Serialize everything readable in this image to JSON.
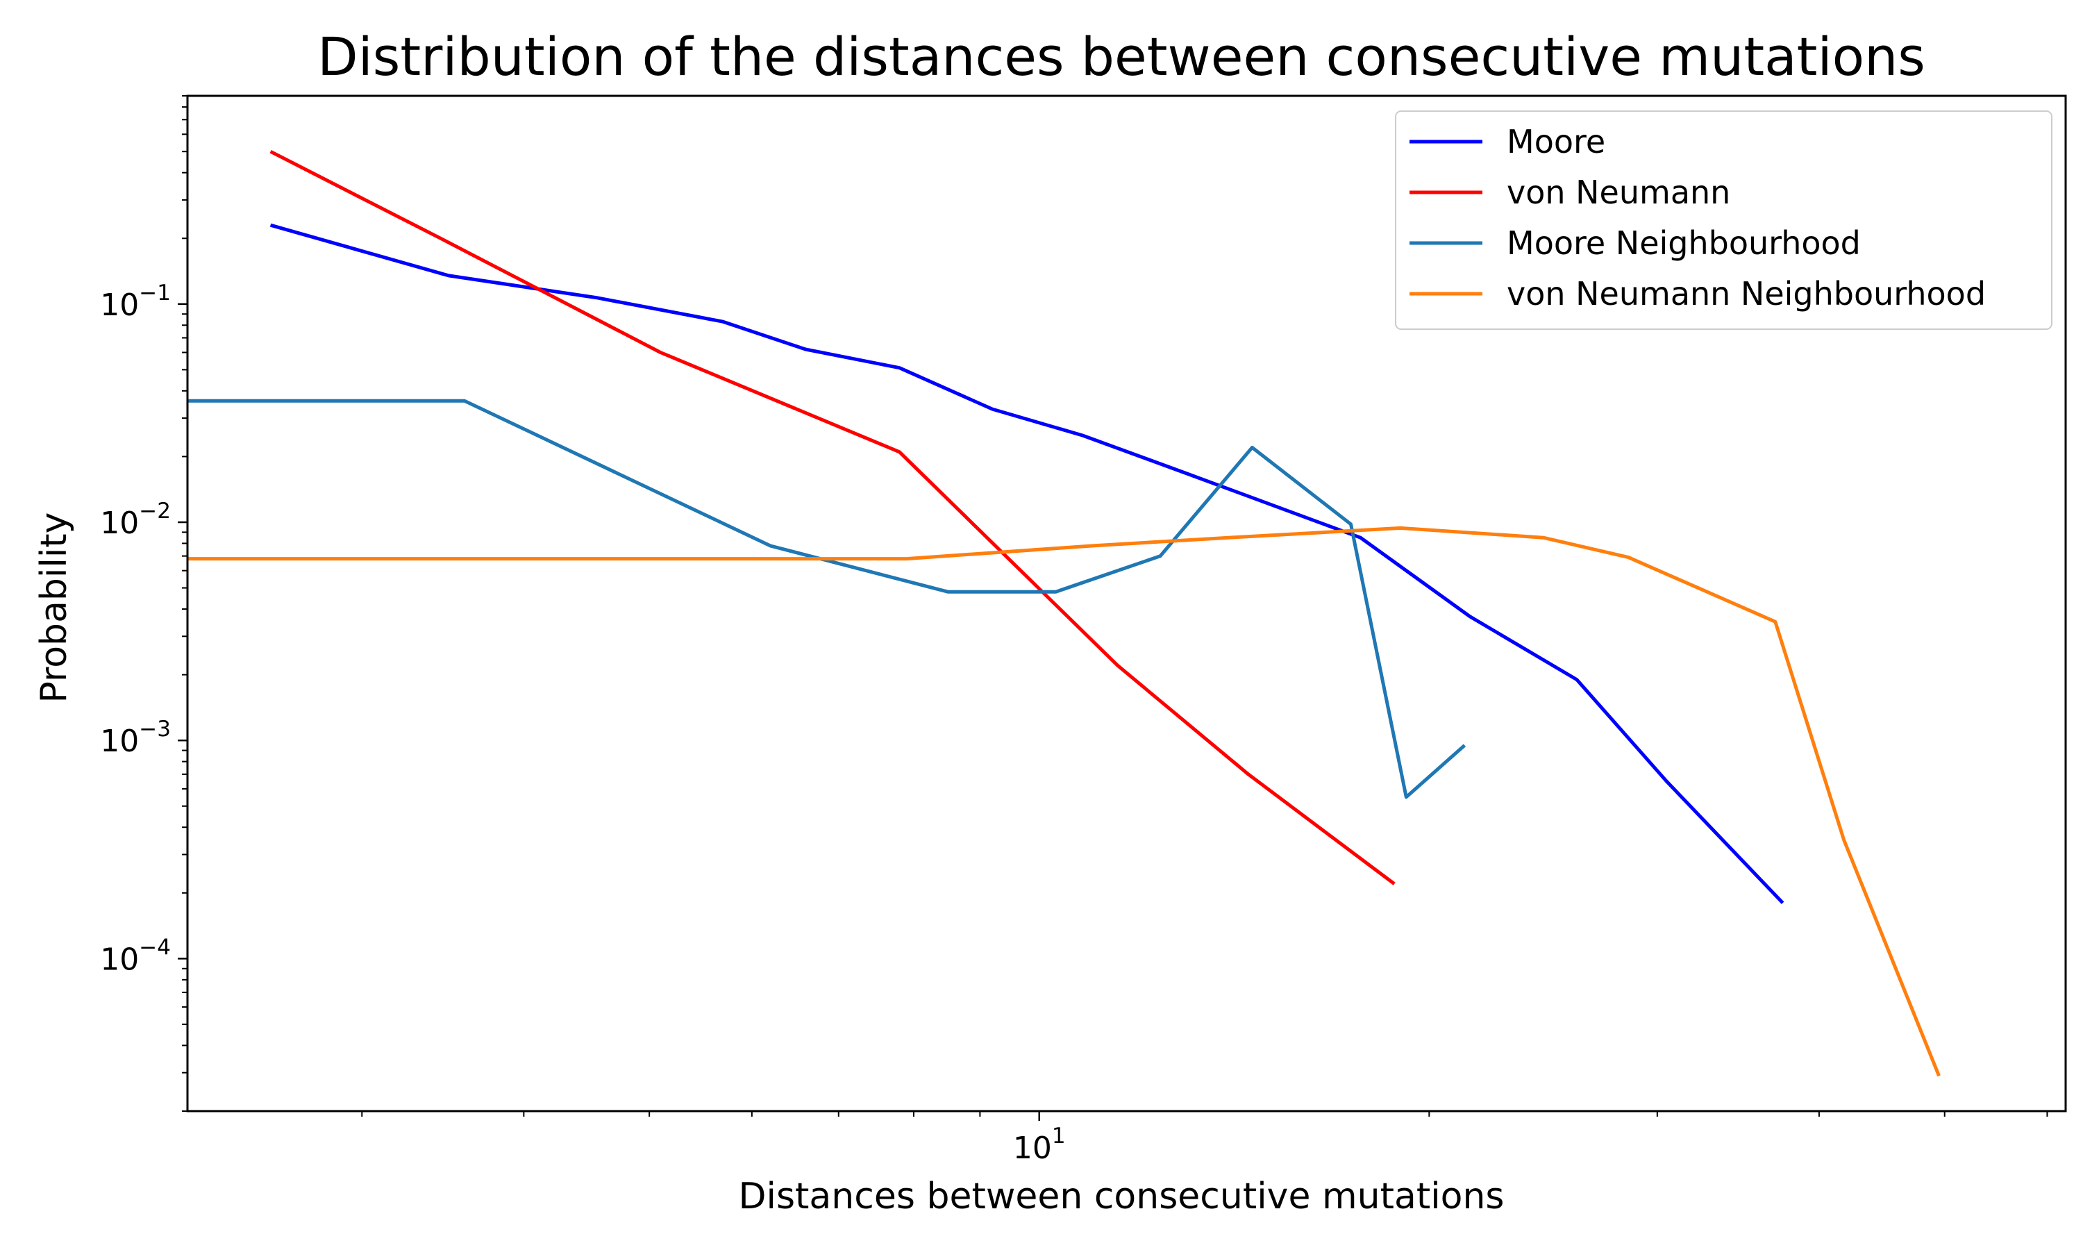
{
  "chart_data": {
    "type": "line",
    "title": "Distribution of the distances between consecutive mutations",
    "xlabel": "Distances between consecutive mutations",
    "ylabel": "Probability",
    "xscale": "log",
    "yscale": "log",
    "xlim": [
      2.2,
      62
    ],
    "ylim": [
      2e-05,
      0.9
    ],
    "x_ticks": [
      {
        "value": 10,
        "base": "10",
        "exp": "1"
      }
    ],
    "y_ticks": [
      {
        "value": 0.1,
        "base": "10",
        "exp": "−1"
      },
      {
        "value": 0.01,
        "base": "10",
        "exp": "−2"
      },
      {
        "value": 0.001,
        "base": "10",
        "exp": "−3"
      },
      {
        "value": 0.0001,
        "base": "10",
        "exp": "−4"
      }
    ],
    "legend_position": "top-right",
    "grid": false,
    "series": [
      {
        "name": "Moore",
        "color": "#0000ff",
        "points": [
          [
            2.55,
            0.23
          ],
          [
            3.5,
            0.135
          ],
          [
            4.55,
            0.107
          ],
          [
            5.7,
            0.083
          ],
          [
            6.6,
            0.062
          ],
          [
            7.8,
            0.051
          ],
          [
            9.2,
            0.033
          ],
          [
            10.8,
            0.025
          ],
          [
            12.9,
            0.017
          ],
          [
            17.7,
            0.0085
          ],
          [
            21.5,
            0.0037
          ],
          [
            26.0,
            0.0019
          ],
          [
            30.5,
            0.00065
          ],
          [
            37.5,
            0.00018
          ]
        ]
      },
      {
        "name": "von Neumann",
        "color": "#ff0000",
        "points": [
          [
            2.55,
            0.5
          ],
          [
            3.45,
            0.2
          ],
          [
            5.1,
            0.06
          ],
          [
            7.8,
            0.021
          ],
          [
            11.5,
            0.0022
          ],
          [
            14.5,
            0.0007
          ],
          [
            18.8,
            0.00022
          ]
        ]
      },
      {
        "name": "Moore Neighbourhood",
        "color": "#1f77b4",
        "points": [
          [
            2.2,
            0.036
          ],
          [
            3.6,
            0.036
          ],
          [
            6.2,
            0.0078
          ],
          [
            8.5,
            0.0048
          ],
          [
            10.3,
            0.0048
          ],
          [
            12.4,
            0.007
          ],
          [
            14.6,
            0.022
          ],
          [
            17.4,
            0.0098
          ],
          [
            19.2,
            0.00055
          ],
          [
            21.3,
            0.00095
          ]
        ]
      },
      {
        "name": "von Neumann Neighbourhood",
        "color": "#ff7f0e",
        "points": [
          [
            2.2,
            0.0068
          ],
          [
            5.0,
            0.0068
          ],
          [
            7.9,
            0.0068
          ],
          [
            11.0,
            0.0078
          ],
          [
            14.0,
            0.0085
          ],
          [
            19.0,
            0.0094
          ],
          [
            24.5,
            0.0085
          ],
          [
            28.5,
            0.0069
          ],
          [
            37.0,
            0.0035
          ],
          [
            41.8,
            0.00035
          ],
          [
            49.5,
            2.9e-05
          ]
        ]
      }
    ]
  }
}
